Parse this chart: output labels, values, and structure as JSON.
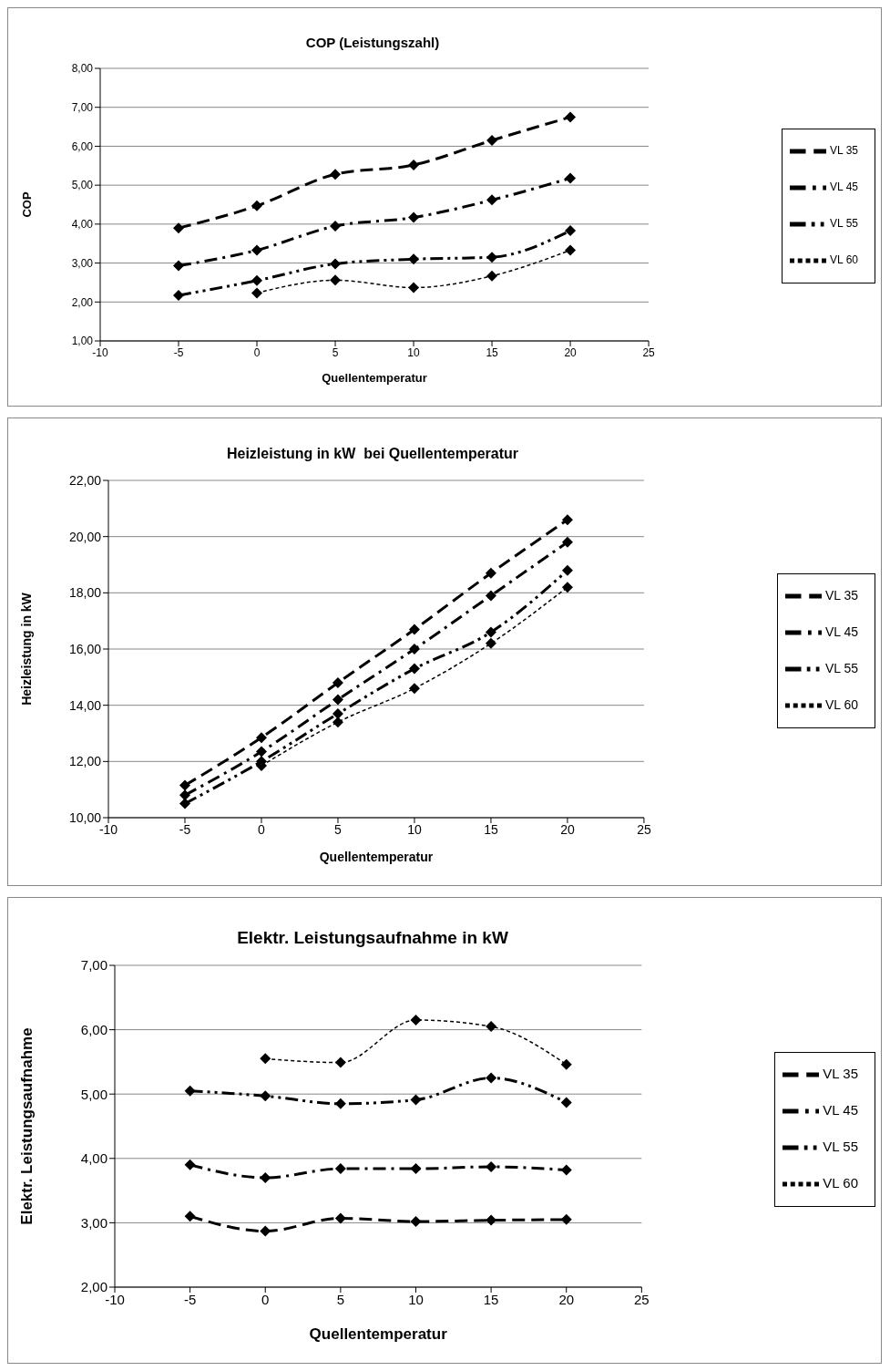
{
  "chart_data": [
    {
      "type": "line",
      "title": "COP (Leistungszahl)",
      "xlabel": "Quellentemperatur",
      "ylabel": "COP",
      "x": [
        -5,
        0,
        5,
        10,
        15,
        20
      ],
      "xlim": [
        -10,
        25
      ],
      "xticks": [
        -10,
        -5,
        0,
        5,
        10,
        15,
        20,
        25
      ],
      "ylim": [
        1,
        8
      ],
      "yticks": [
        {
          "value": 1,
          "label": "1,00"
        },
        {
          "value": 2,
          "label": "2,00"
        },
        {
          "value": 3,
          "label": "3,00"
        },
        {
          "value": 4,
          "label": "4,00"
        },
        {
          "value": 5,
          "label": "5,00"
        },
        {
          "value": 6,
          "label": "6,00"
        },
        {
          "value": 7,
          "label": "7,00"
        },
        {
          "value": 8,
          "label": "8,00"
        }
      ],
      "grid": "y",
      "legend": "right",
      "marker": "diamond",
      "series": [
        {
          "name": "VL 35",
          "color": "#000000",
          "line_style": "dashed",
          "values": [
            3.9,
            4.47,
            5.28,
            5.52,
            6.15,
            6.75
          ]
        },
        {
          "name": "VL 45",
          "color": "#000000",
          "line_style": "dashdot",
          "values": [
            2.93,
            3.33,
            3.95,
            4.17,
            4.62,
            5.18
          ]
        },
        {
          "name": "VL 55",
          "color": "#000000",
          "line_style": "dashdotdot",
          "values": [
            2.17,
            2.55,
            2.98,
            3.1,
            3.15,
            3.83
          ]
        },
        {
          "name": "VL 60",
          "color": "#000000",
          "line_style": "dotted",
          "values": [
            null,
            2.23,
            2.56,
            2.37,
            2.67,
            3.33
          ]
        }
      ]
    },
    {
      "type": "line",
      "title": "Heizleistung in kW  bei Quellentemperatur",
      "xlabel": "Quellentemperatur",
      "ylabel": "Heizleistung in kW",
      "x": [
        -5,
        0,
        5,
        10,
        15,
        20
      ],
      "xlim": [
        -10,
        25
      ],
      "xticks": [
        -10,
        -5,
        0,
        5,
        10,
        15,
        20,
        25
      ],
      "ylim": [
        10,
        22
      ],
      "yticks": [
        {
          "value": 10,
          "label": "10,00"
        },
        {
          "value": 12,
          "label": "12,00"
        },
        {
          "value": 14,
          "label": "14,00"
        },
        {
          "value": 16,
          "label": "16,00"
        },
        {
          "value": 18,
          "label": "18,00"
        },
        {
          "value": 20,
          "label": "20,00"
        },
        {
          "value": 22,
          "label": "22,00"
        }
      ],
      "grid": "y",
      "legend": "right",
      "marker": "diamond",
      "series": [
        {
          "name": "VL 35",
          "color": "#000000",
          "line_style": "dashed",
          "values": [
            11.15,
            12.85,
            14.8,
            16.7,
            18.7,
            20.6
          ]
        },
        {
          "name": "VL 45",
          "color": "#000000",
          "line_style": "dashdot",
          "values": [
            10.8,
            12.35,
            14.2,
            16.0,
            17.9,
            19.8
          ]
        },
        {
          "name": "VL 55",
          "color": "#000000",
          "line_style": "dashdotdot",
          "values": [
            10.5,
            12.0,
            13.7,
            15.3,
            16.6,
            18.8
          ]
        },
        {
          "name": "VL 60",
          "color": "#000000",
          "line_style": "dotted",
          "values": [
            null,
            11.85,
            13.4,
            14.6,
            16.2,
            18.2
          ]
        }
      ]
    },
    {
      "type": "line",
      "title": "Elektr. Leistungsaufnahme in kW",
      "xlabel": "Quellentemperatur",
      "ylabel": "Elektr. Leistungsaufnahme",
      "x": [
        -5,
        0,
        5,
        10,
        15,
        20
      ],
      "xlim": [
        -10,
        25
      ],
      "xticks": [
        -10,
        -5,
        0,
        5,
        10,
        15,
        20,
        25
      ],
      "ylim": [
        2,
        7
      ],
      "yticks": [
        {
          "value": 2,
          "label": "2,00"
        },
        {
          "value": 3,
          "label": "3,00"
        },
        {
          "value": 4,
          "label": "4,00"
        },
        {
          "value": 5,
          "label": "5,00"
        },
        {
          "value": 6,
          "label": "6,00"
        },
        {
          "value": 7,
          "label": "7,00"
        }
      ],
      "grid": "y",
      "legend": "right",
      "marker": "diamond",
      "series": [
        {
          "name": "VL 35",
          "color": "#000000",
          "line_style": "dashed",
          "values": [
            3.1,
            2.87,
            3.07,
            3.02,
            3.04,
            3.05
          ]
        },
        {
          "name": "VL 45",
          "color": "#000000",
          "line_style": "dashdot",
          "values": [
            3.9,
            3.7,
            3.84,
            3.84,
            3.87,
            3.82
          ]
        },
        {
          "name": "VL 55",
          "color": "#000000",
          "line_style": "dashdotdot",
          "values": [
            5.05,
            4.97,
            4.85,
            4.91,
            5.25,
            4.87
          ]
        },
        {
          "name": "VL 60",
          "color": "#000000",
          "line_style": "dotted",
          "values": [
            null,
            5.55,
            5.49,
            6.15,
            6.05,
            5.46
          ]
        }
      ]
    }
  ]
}
